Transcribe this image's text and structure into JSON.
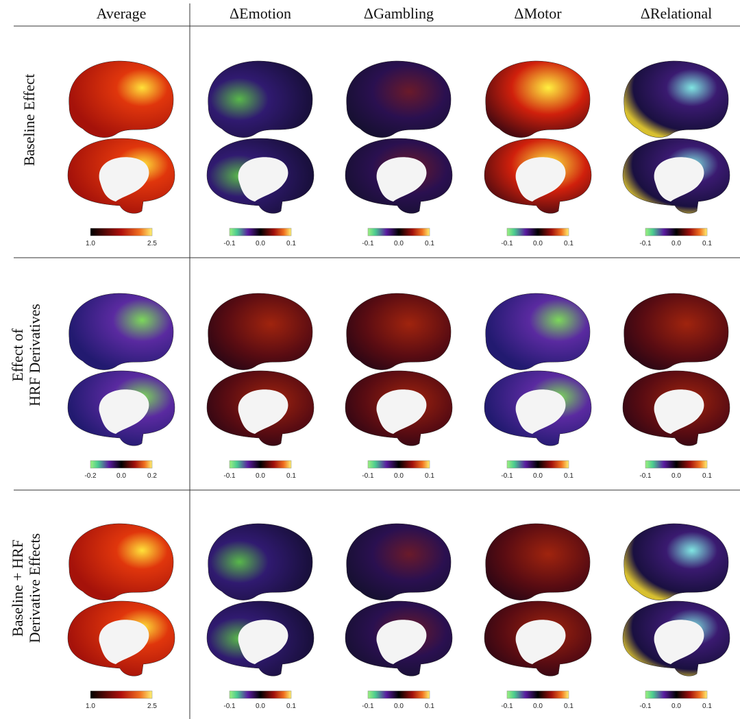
{
  "columns": [
    "Average",
    "ΔEmotion",
    "ΔGambling",
    "ΔMotor",
    "ΔRelational"
  ],
  "rows": [
    {
      "label": [
        "Baseline Effect"
      ],
      "colorbars": [
        [
          "1.0",
          "2.5"
        ],
        [
          "-0.1",
          "0.0",
          "0.1"
        ],
        [
          "-0.1",
          "0.0",
          "0.1"
        ],
        [
          "-0.1",
          "0.0",
          "0.1"
        ],
        [
          "-0.1",
          "0.0",
          "0.1"
        ]
      ]
    },
    {
      "label": [
        "Effect of",
        "HRF Derivatives"
      ],
      "colorbars": [
        [
          "-0.2",
          "0.0",
          "0.2"
        ],
        [
          "-0.1",
          "0.0",
          "0.1"
        ],
        [
          "-0.1",
          "0.0",
          "0.1"
        ],
        [
          "-0.1",
          "0.0",
          "0.1"
        ],
        [
          "-0.1",
          "0.0",
          "0.1"
        ]
      ]
    },
    {
      "label": [
        "Baseline + HRF",
        "Derivative Effects"
      ],
      "colorbars": [
        [
          "1.0",
          "2.5"
        ],
        [
          "-0.1",
          "0.0",
          "0.1"
        ],
        [
          "-0.1",
          "0.0",
          "0.1"
        ],
        [
          "-0.1",
          "0.0",
          "0.1"
        ],
        [
          "-0.1",
          "0.0",
          "0.1"
        ]
      ]
    }
  ]
}
